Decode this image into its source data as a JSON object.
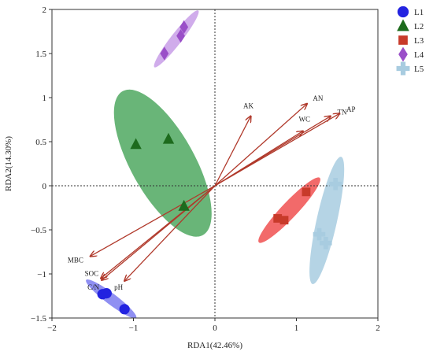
{
  "chart_data": {
    "type": "scatter",
    "subtype": "rda-biplot",
    "xlabel": "RDA1(42.46%)",
    "ylabel": "RDA2(14.30%)",
    "xlim": [
      -2.0,
      2.0
    ],
    "ylim": [
      -1.5,
      2.0
    ],
    "xticks": [
      -2,
      -1,
      0,
      1,
      2
    ],
    "yticks": [
      -1.5,
      -1,
      -0.5,
      0,
      0.5,
      1,
      1.5,
      2
    ],
    "xtick_labels": [
      "−2",
      "−1",
      "0",
      "1",
      "2"
    ],
    "ytick_labels": [
      "−1.5",
      "−1",
      "−0.5",
      "0",
      "0.5",
      "1",
      "1.5",
      "2"
    ],
    "reference_lines": "dotted lines at x=0 and y=0",
    "legend_position": "right",
    "series": [
      {
        "name": "L1",
        "marker": "circle",
        "color": "#2323e0",
        "ellipse_color": "#7b7bf0",
        "points": [
          [
            -1.38,
            -1.23
          ],
          [
            -1.33,
            -1.22
          ],
          [
            -1.11,
            -1.4
          ]
        ]
      },
      {
        "name": "L2",
        "marker": "triangle",
        "color": "#1d6b1d",
        "ellipse_color": "#4fa860",
        "points": [
          [
            -0.97,
            0.47
          ],
          [
            -0.57,
            0.53
          ],
          [
            -0.38,
            -0.23
          ]
        ]
      },
      {
        "name": "L3",
        "marker": "square",
        "color": "#c83a2a",
        "ellipse_color": "#f05050",
        "points": [
          [
            0.77,
            -0.37
          ],
          [
            0.85,
            -0.39
          ],
          [
            1.12,
            -0.07
          ]
        ]
      },
      {
        "name": "L4",
        "marker": "diamond",
        "color": "#9a4fc8",
        "ellipse_color": "#c89ee8",
        "points": [
          [
            -0.42,
            1.7
          ],
          [
            -0.38,
            1.8
          ],
          [
            -0.62,
            1.5
          ]
        ]
      },
      {
        "name": "L5",
        "marker": "plus",
        "color": "#a8cce0",
        "ellipse_color": "#a8cce0",
        "points": [
          [
            1.28,
            -0.55
          ],
          [
            1.36,
            -0.65
          ],
          [
            1.48,
            0.02
          ]
        ]
      }
    ],
    "arrows": [
      {
        "label": "AK",
        "x": 0.44,
        "y": 0.79
      },
      {
        "label": "AN",
        "x": 1.13,
        "y": 0.93
      },
      {
        "label": "WC",
        "x": 1.08,
        "y": 0.62
      },
      {
        "label": "TN",
        "x": 1.42,
        "y": 0.79
      },
      {
        "label": "AP",
        "x": 1.53,
        "y": 0.82
      },
      {
        "label": "MBC",
        "x": -1.53,
        "y": -0.8
      },
      {
        "label": "SOC",
        "x": -1.4,
        "y": -1.05
      },
      {
        "label": "C/N",
        "x": -1.39,
        "y": -1.07
      },
      {
        "label": "pH",
        "x": -1.11,
        "y": -1.08
      }
    ],
    "arrow_color": "#b0392b"
  }
}
